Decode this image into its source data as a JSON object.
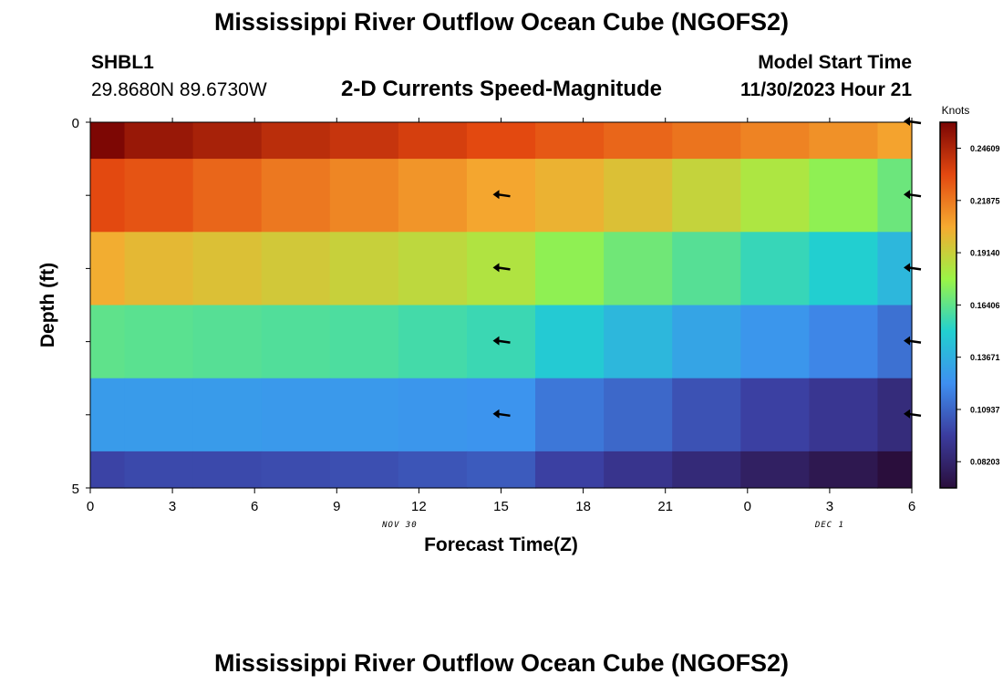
{
  "page": {
    "title": "Mississippi River Outflow Ocean Cube (NGOFS2)",
    "title_repeat": "Mississippi River Outflow Ocean Cube (NGOFS2)",
    "station_id": "SHBL1",
    "station_coords": "29.8680N  89.6730W",
    "subtitle": "2-D Currents Speed-Magnitude",
    "model_start_label": "Model Start Time",
    "model_start_value": "11/30/2023 Hour 21"
  },
  "chart_data": {
    "type": "heatmap",
    "title": "2-D Currents Speed-Magnitude",
    "xlabel": "Forecast Time(Z)",
    "ylabel": "Depth (ft)",
    "x_tick_labels": [
      "0",
      "3",
      "6",
      "9",
      "12",
      "15",
      "18",
      "21",
      "0",
      "3",
      "6"
    ],
    "x_tick_hours": [
      0,
      3,
      6,
      9,
      12,
      15,
      18,
      21,
      24,
      27,
      30
    ],
    "x_range_hours": [
      0,
      30
    ],
    "date_labels": [
      {
        "text": "NOV 30",
        "hour": 11.3
      },
      {
        "text": "DEC 1",
        "hour": 27
      }
    ],
    "y_tick_labels": [
      "0",
      "5"
    ],
    "y_range_ft": [
      0,
      5
    ],
    "y_ticks_ft": [
      0,
      1,
      2,
      3,
      4,
      5
    ],
    "colorbar": {
      "label": "Knots",
      "ticks": [
        "0.24609",
        "0.21875",
        "0.19140",
        "0.16406",
        "0.13671",
        "0.10937",
        "0.08203"
      ],
      "range": [
        0.0683,
        0.2597
      ],
      "palette": [
        "#2a0e3c",
        "#3b3c9e",
        "#3e8ff0",
        "#22d0d0",
        "#9bf446",
        "#f5aa30",
        "#e34810",
        "#7a0504"
      ]
    },
    "columns_hours": [
      0,
      2.5,
      5,
      7.5,
      10,
      12.5,
      15,
      17.5,
      20,
      22.5,
      25,
      27.5,
      30
    ],
    "rows_depth_ft": [
      0,
      1,
      2,
      3,
      4,
      5
    ],
    "speed_knots": [
      [
        0.259,
        0.252,
        0.248,
        0.243,
        0.24,
        0.236,
        0.232,
        0.228,
        0.224,
        0.22,
        0.216,
        0.212,
        0.207
      ],
      [
        0.232,
        0.229,
        0.224,
        0.219,
        0.215,
        0.211,
        0.206,
        0.202,
        0.197,
        0.19,
        0.183,
        0.175,
        0.167
      ],
      [
        0.204,
        0.2,
        0.197,
        0.194,
        0.191,
        0.188,
        0.184,
        0.175,
        0.168,
        0.162,
        0.155,
        0.15,
        0.14
      ],
      [
        0.164,
        0.163,
        0.162,
        0.161,
        0.16,
        0.158,
        0.156,
        0.148,
        0.14,
        0.132,
        0.126,
        0.12,
        0.113
      ],
      [
        0.128,
        0.128,
        0.128,
        0.127,
        0.127,
        0.126,
        0.125,
        0.115,
        0.11,
        0.103,
        0.097,
        0.092,
        0.086
      ],
      [
        0.098,
        0.1,
        0.1,
        0.101,
        0.102,
        0.104,
        0.106,
        0.097,
        0.091,
        0.085,
        0.079,
        0.074,
        0.068
      ]
    ],
    "vectors": [
      {
        "hour": 15,
        "depth_ft": 1,
        "direction": "west"
      },
      {
        "hour": 15,
        "depth_ft": 2,
        "direction": "west"
      },
      {
        "hour": 15,
        "depth_ft": 3,
        "direction": "west"
      },
      {
        "hour": 15,
        "depth_ft": 4,
        "direction": "west"
      },
      {
        "hour": 30,
        "depth_ft": 0,
        "direction": "west"
      },
      {
        "hour": 30,
        "depth_ft": 1,
        "direction": "west"
      },
      {
        "hour": 30,
        "depth_ft": 2,
        "direction": "west"
      },
      {
        "hour": 30,
        "depth_ft": 3,
        "direction": "west"
      },
      {
        "hour": 30,
        "depth_ft": 4,
        "direction": "west"
      }
    ]
  }
}
